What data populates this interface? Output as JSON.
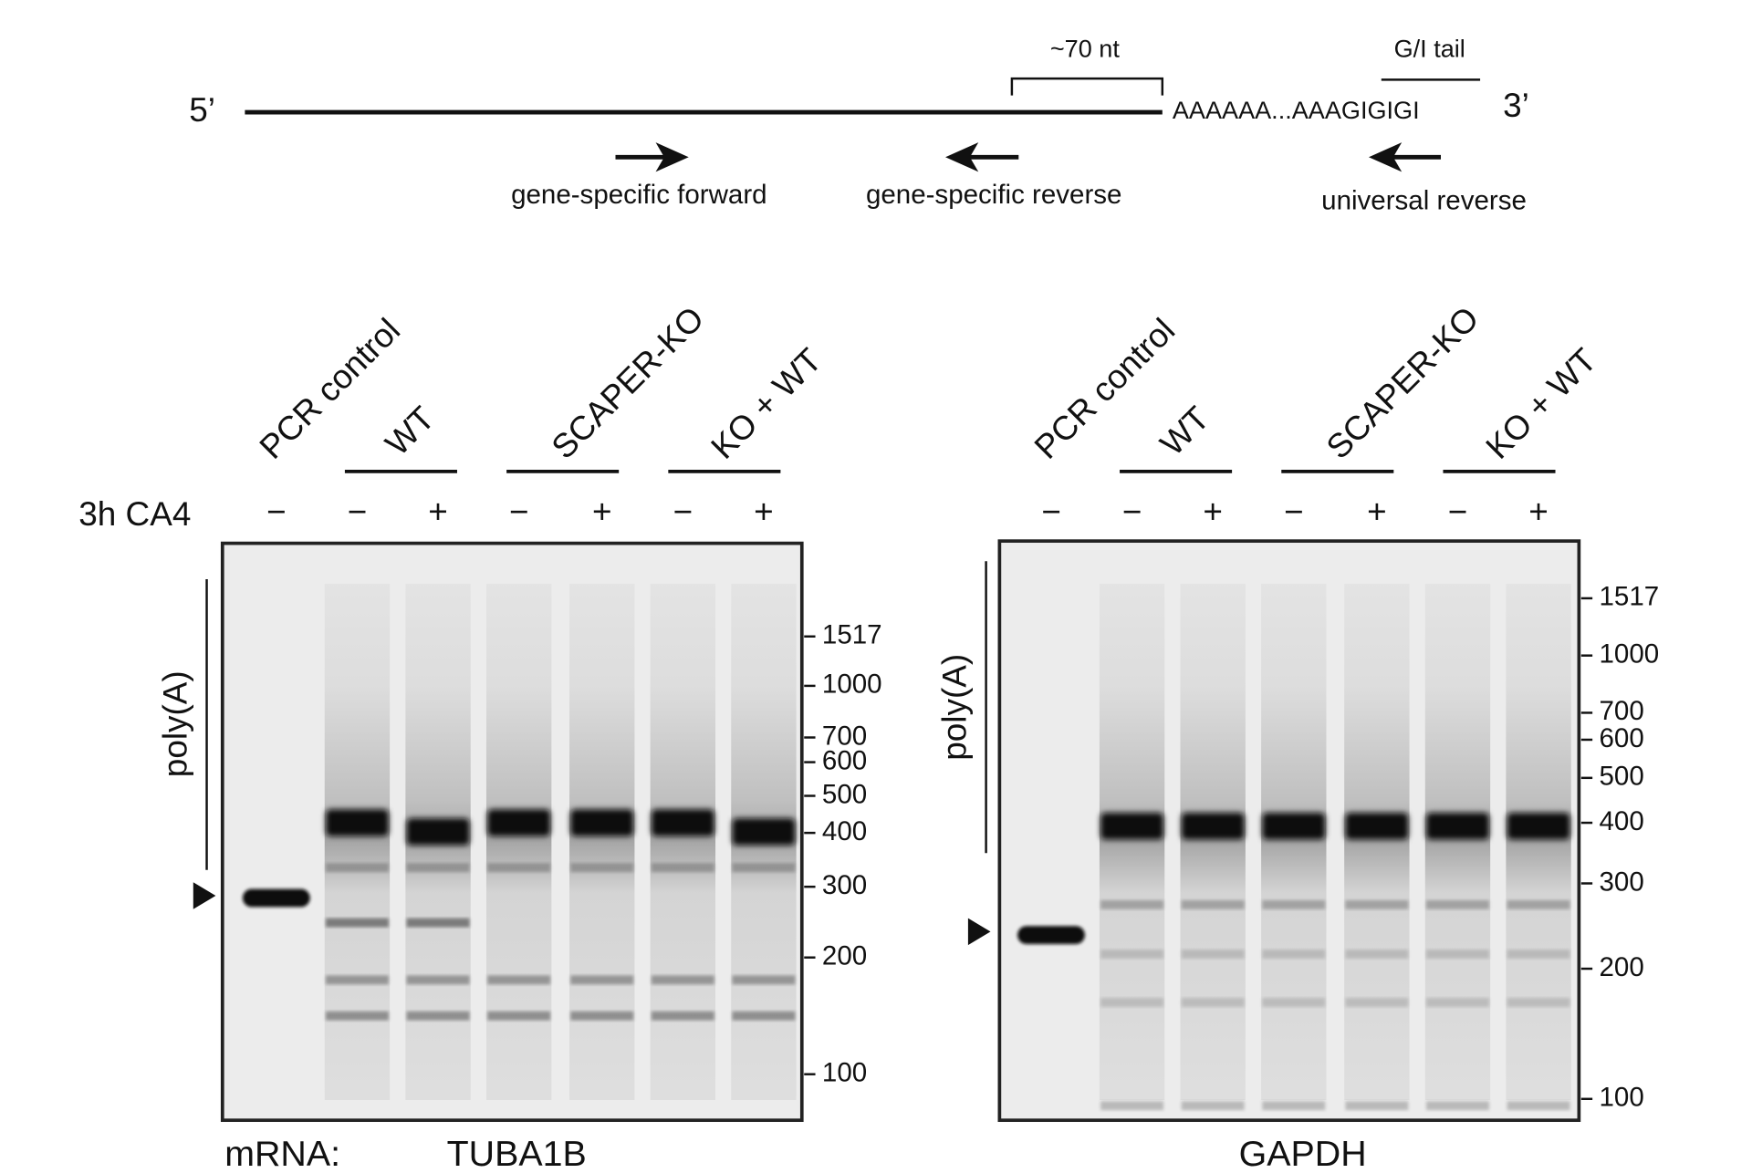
{
  "schematic": {
    "five_prime": "5’",
    "three_prime": "3’",
    "tail_sequence": "AAAAAA...AAAGIGIGI",
    "bracket_label": "~70 nt",
    "tail_label": "G/I tail",
    "primers": [
      "gene-specific forward",
      "gene-specific reverse",
      "universal reverse"
    ]
  },
  "treatment_label": "3h CA4",
  "mrna_label": "mRNA:",
  "gels": [
    {
      "mrna": "TUBA1B",
      "side_label": "poly(A)",
      "groups": [
        "PCR control",
        "WT",
        "SCAPER-KO",
        "KO + WT"
      ],
      "treatments": [
        "−",
        "−",
        "+",
        "−",
        "+",
        "−",
        "+"
      ],
      "ladder": [
        "1517",
        "1000",
        "700",
        "600",
        "500",
        "400",
        "300",
        "200",
        "100"
      ]
    },
    {
      "mrna": "GAPDH",
      "side_label": "poly(A)",
      "groups": [
        "PCR control",
        "WT",
        "SCAPER-KO",
        "KO + WT"
      ],
      "treatments": [
        "−",
        "−",
        "+",
        "−",
        "+",
        "−",
        "+"
      ],
      "ladder": [
        "1517",
        "1000",
        "700",
        "600",
        "500",
        "400",
        "300",
        "200",
        "100"
      ]
    }
  ]
}
